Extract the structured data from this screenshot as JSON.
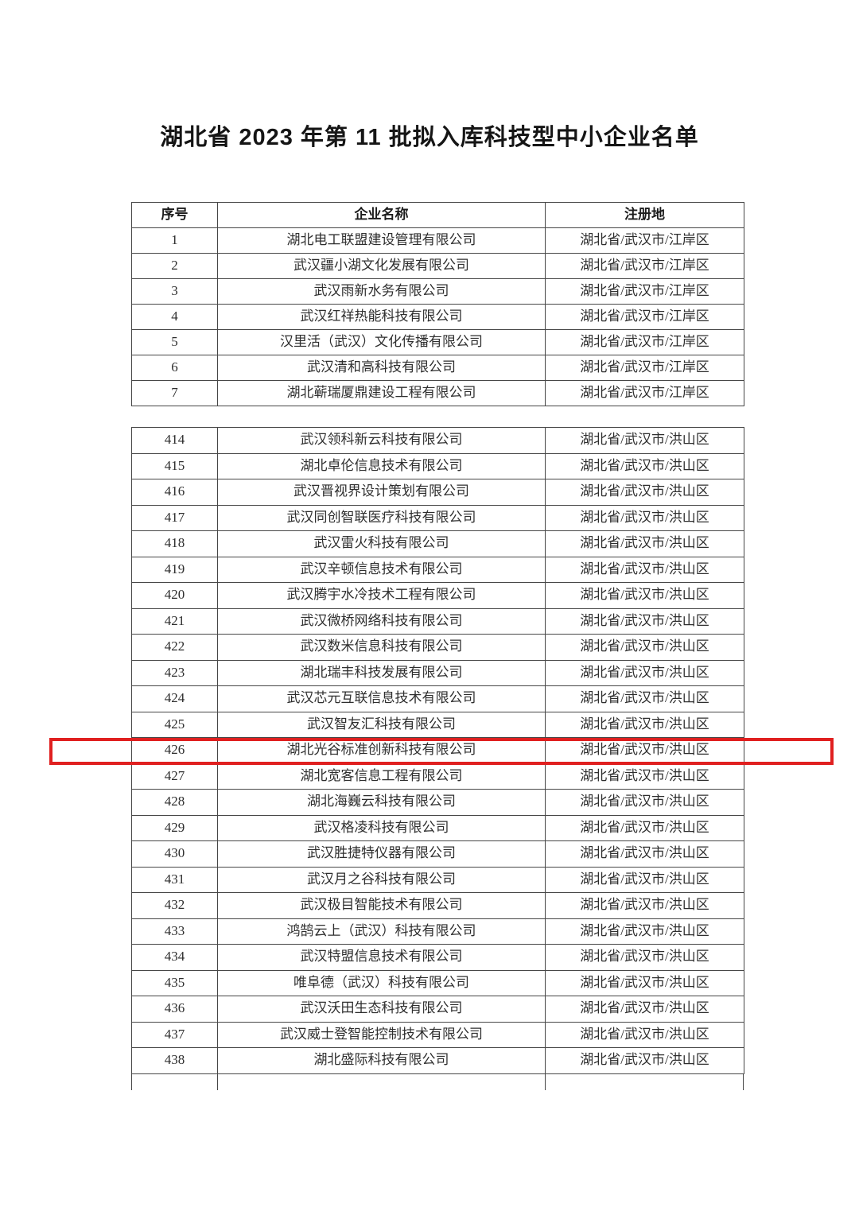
{
  "page": {
    "title": "湖北省 2023 年第 11 批拟入库科技型中小企业名单"
  },
  "table": {
    "headers": [
      "序号",
      "企业名称",
      "注册地"
    ],
    "highlight": {
      "row_no": "426",
      "color": "#e02020"
    },
    "section1": [
      {
        "no": "1",
        "name": "湖北电工联盟建设管理有限公司",
        "region": "湖北省/武汉市/江岸区"
      },
      {
        "no": "2",
        "name": "武汉疆小湖文化发展有限公司",
        "region": "湖北省/武汉市/江岸区"
      },
      {
        "no": "3",
        "name": "武汉雨新水务有限公司",
        "region": "湖北省/武汉市/江岸区"
      },
      {
        "no": "4",
        "name": "武汉红祥热能科技有限公司",
        "region": "湖北省/武汉市/江岸区"
      },
      {
        "no": "5",
        "name": "汉里活（武汉）文化传播有限公司",
        "region": "湖北省/武汉市/江岸区"
      },
      {
        "no": "6",
        "name": "武汉清和高科技有限公司",
        "region": "湖北省/武汉市/江岸区"
      },
      {
        "no": "7",
        "name": "湖北蕲瑞厦鼎建设工程有限公司",
        "region": "湖北省/武汉市/江岸区"
      }
    ],
    "section2": [
      {
        "no": "414",
        "name": "武汉领科新云科技有限公司",
        "region": "湖北省/武汉市/洪山区"
      },
      {
        "no": "415",
        "name": "湖北卓伦信息技术有限公司",
        "region": "湖北省/武汉市/洪山区"
      },
      {
        "no": "416",
        "name": "武汉晋视界设计策划有限公司",
        "region": "湖北省/武汉市/洪山区"
      },
      {
        "no": "417",
        "name": "武汉同创智联医疗科技有限公司",
        "region": "湖北省/武汉市/洪山区"
      },
      {
        "no": "418",
        "name": "武汉雷火科技有限公司",
        "region": "湖北省/武汉市/洪山区"
      },
      {
        "no": "419",
        "name": "武汉辛顿信息技术有限公司",
        "region": "湖北省/武汉市/洪山区"
      },
      {
        "no": "420",
        "name": "武汉腾宇水冷技术工程有限公司",
        "region": "湖北省/武汉市/洪山区"
      },
      {
        "no": "421",
        "name": "武汉微桥网络科技有限公司",
        "region": "湖北省/武汉市/洪山区"
      },
      {
        "no": "422",
        "name": "武汉数米信息科技有限公司",
        "region": "湖北省/武汉市/洪山区"
      },
      {
        "no": "423",
        "name": "湖北瑞丰科技发展有限公司",
        "region": "湖北省/武汉市/洪山区"
      },
      {
        "no": "424",
        "name": "武汉芯元互联信息技术有限公司",
        "region": "湖北省/武汉市/洪山区"
      },
      {
        "no": "425",
        "name": "武汉智友汇科技有限公司",
        "region": "湖北省/武汉市/洪山区"
      },
      {
        "no": "426",
        "name": "湖北光谷标准创新科技有限公司",
        "region": "湖北省/武汉市/洪山区"
      },
      {
        "no": "427",
        "name": "湖北宽客信息工程有限公司",
        "region": "湖北省/武汉市/洪山区"
      },
      {
        "no": "428",
        "name": "湖北海巍云科技有限公司",
        "region": "湖北省/武汉市/洪山区"
      },
      {
        "no": "429",
        "name": "武汉格凌科技有限公司",
        "region": "湖北省/武汉市/洪山区"
      },
      {
        "no": "430",
        "name": "武汉胜捷特仪器有限公司",
        "region": "湖北省/武汉市/洪山区"
      },
      {
        "no": "431",
        "name": "武汉月之谷科技有限公司",
        "region": "湖北省/武汉市/洪山区"
      },
      {
        "no": "432",
        "name": "武汉极目智能技术有限公司",
        "region": "湖北省/武汉市/洪山区"
      },
      {
        "no": "433",
        "name": "鸿鹄云上（武汉）科技有限公司",
        "region": "湖北省/武汉市/洪山区"
      },
      {
        "no": "434",
        "name": "武汉特盟信息技术有限公司",
        "region": "湖北省/武汉市/洪山区"
      },
      {
        "no": "435",
        "name": "唯阜德（武汉）科技有限公司",
        "region": "湖北省/武汉市/洪山区"
      },
      {
        "no": "436",
        "name": "武汉沃田生态科技有限公司",
        "region": "湖北省/武汉市/洪山区"
      },
      {
        "no": "437",
        "name": "武汉威士登智能控制技术有限公司",
        "region": "湖北省/武汉市/洪山区"
      },
      {
        "no": "438",
        "name": "湖北盛际科技有限公司",
        "region": "湖北省/武汉市/洪山区"
      }
    ]
  }
}
